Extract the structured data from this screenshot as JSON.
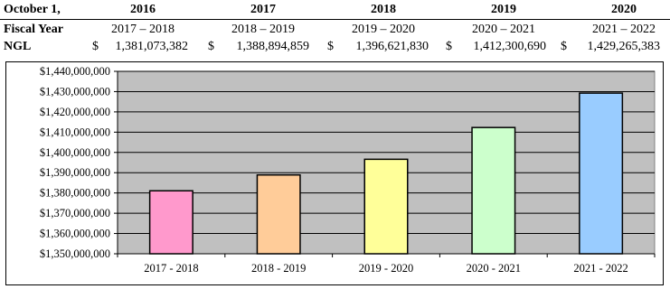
{
  "table": {
    "header_label": "October 1,",
    "years": [
      "2016",
      "2017",
      "2018",
      "2019",
      "2020"
    ],
    "fiscal_label": "Fiscal Year",
    "fiscal_years": [
      "2017 – 2018",
      "2018 – 2019",
      "2019 – 2020",
      "2020 – 2021",
      "2021 – 2022"
    ],
    "ngl_label": "NGL",
    "currency_symbol": "$",
    "ngl_values": [
      "1,381,073,382",
      "1,388,894,859",
      "1,396,621,830",
      "1,412,300,690",
      "1,429,265,383"
    ]
  },
  "chart_data": {
    "type": "bar",
    "categories": [
      "2017 - 2018",
      "2018 - 2019",
      "2019 - 2020",
      "2020 - 2021",
      "2021 - 2022"
    ],
    "values": [
      1381073382,
      1388894859,
      1396621830,
      1412300690,
      1429265383
    ],
    "colors": [
      "#ff99cc",
      "#ffcc99",
      "#ffff99",
      "#ccffcc",
      "#99ccff"
    ],
    "plot_background": "#c0c0c0",
    "ylim": [
      1350000000,
      1440000000
    ],
    "y_ticks": [
      1350000000,
      1360000000,
      1370000000,
      1380000000,
      1390000000,
      1400000000,
      1410000000,
      1420000000,
      1430000000,
      1440000000
    ],
    "y_tick_labels": [
      "$1,350,000,000",
      "$1,360,000,000",
      "$1,370,000,000",
      "$1,380,000,000",
      "$1,390,000,000",
      "$1,400,000,000",
      "$1,410,000,000",
      "$1,420,000,000",
      "$1,430,000,000",
      "$1,440,000,000"
    ],
    "grid": true,
    "legend": false,
    "title": "",
    "xlabel": "",
    "ylabel": ""
  }
}
